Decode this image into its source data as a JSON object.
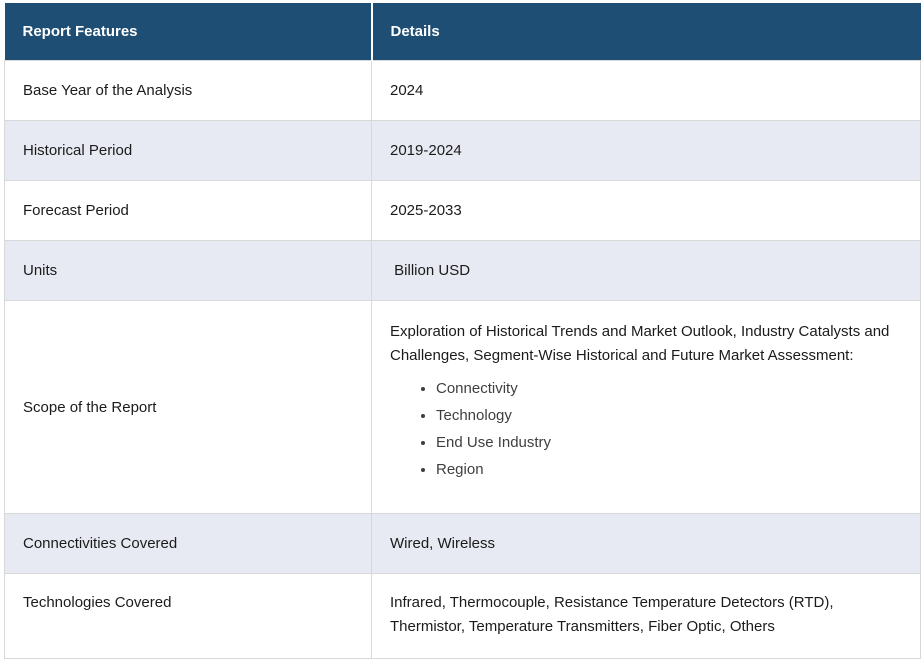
{
  "colors": {
    "header_bg": "#1F4E74",
    "header_text": "#FFFFFF",
    "alt_row_bg": "#E8EAF3",
    "border": "#D8D8D8",
    "cell_text": "#1B1B1B"
  },
  "table": {
    "header": {
      "feature": "Report Features",
      "details": "Details"
    },
    "rows": [
      {
        "feature": "Base Year of the Analysis",
        "details": "2024"
      },
      {
        "feature": "Historical Period",
        "details": "2019-2024"
      },
      {
        "feature": "Forecast Period",
        "details": "2025-2033"
      },
      {
        "feature": "Units",
        "details": " Billion USD"
      },
      {
        "feature": "Scope of the Report",
        "details_intro": "Exploration of Historical Trends and Market Outlook, Industry Catalysts and Challenges, Segment-Wise Historical and Future Market Assessment:",
        "details_bullets": [
          "Connectivity",
          "Technology",
          "End Use Industry",
          "Region"
        ]
      },
      {
        "feature": "Connectivities Covered",
        "details": "Wired, Wireless"
      },
      {
        "feature": "Technologies Covered",
        "details": "Infrared, Thermocouple, Resistance Temperature Detectors (RTD), Thermistor, Temperature Transmitters, Fiber Optic, Others"
      }
    ]
  }
}
